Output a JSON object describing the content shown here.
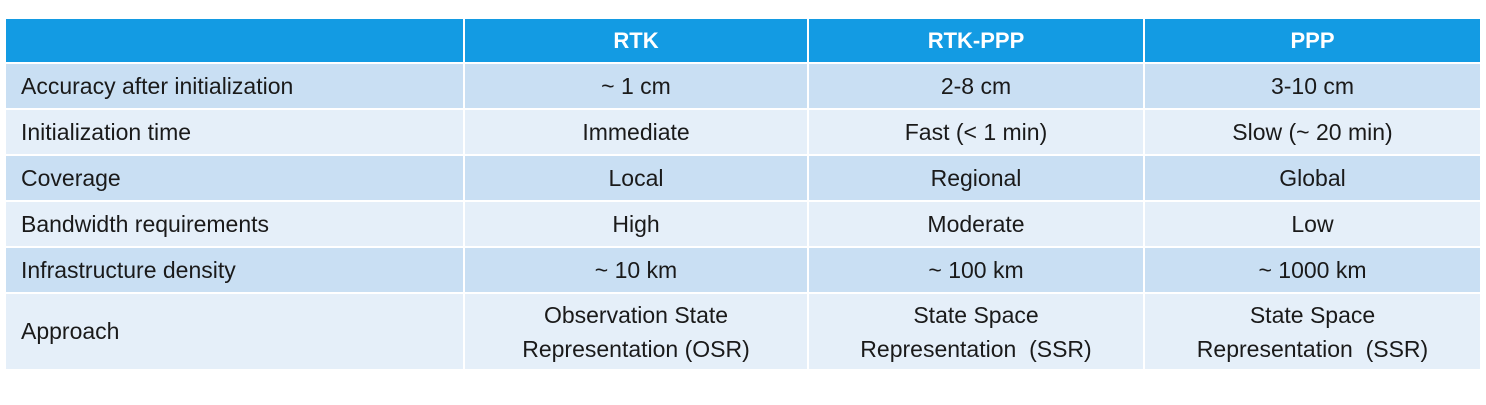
{
  "table": {
    "headers": [
      "",
      "RTK",
      "RTK-PPP",
      "PPP"
    ],
    "rows": [
      {
        "label": "Accuracy after initialization",
        "values": [
          "~ 1 cm",
          "2-8 cm",
          "3-10 cm"
        ]
      },
      {
        "label": "Initialization time",
        "values": [
          "Immediate",
          "Fast (< 1 min)",
          "Slow  (~ 20 min)"
        ]
      },
      {
        "label": "Coverage",
        "values": [
          "Local",
          "Regional",
          "Global"
        ]
      },
      {
        "label": "Bandwidth requirements",
        "values": [
          "High",
          "Moderate",
          "Low"
        ]
      },
      {
        "label": "Infrastructure density",
        "values": [
          "~ 10 km",
          "~ 100 km",
          "~ 1000 km"
        ]
      },
      {
        "label": "Approach",
        "values_line1": [
          "Observation State",
          "State Space",
          "State Space"
        ],
        "values_line2": [
          "Representation (OSR)",
          "Representation  (SSR)",
          "Representation  (SSR)"
        ]
      }
    ]
  },
  "colors": {
    "header_bg": "#139be3",
    "row_dark": "#c9dff3",
    "row_light": "#e5eff9"
  }
}
